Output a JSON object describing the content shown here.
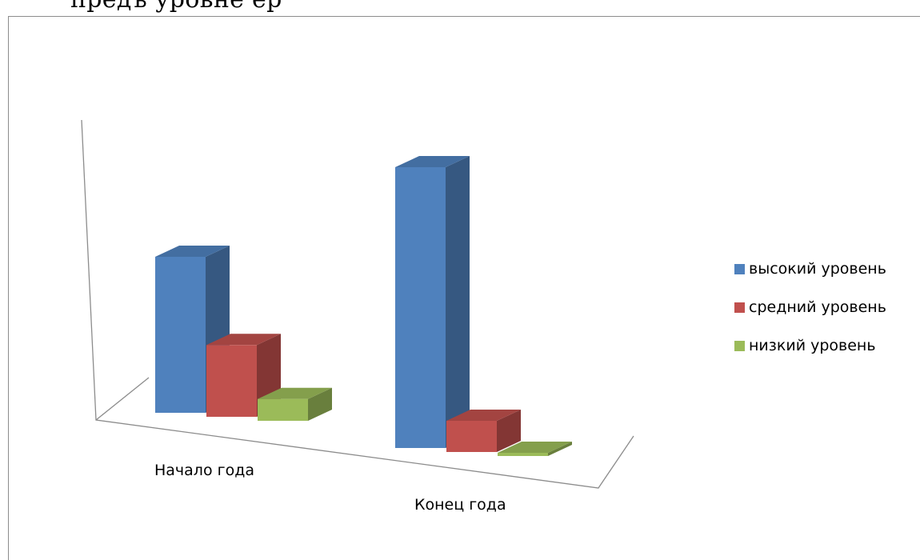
{
  "top_strip_text": "предъ уровне                                            ер",
  "chart_data": {
    "type": "bar",
    "style": "3d-clustered-column",
    "categories": [
      "Начало года",
      "Конец года"
    ],
    "series": [
      {
        "name": "высокий уровень",
        "values": [
          50,
          90
        ],
        "color": "#4F81BD"
      },
      {
        "name": "средний уровень",
        "values": [
          23,
          10
        ],
        "color": "#C0504D"
      },
      {
        "name": "низкий уровень",
        "values": [
          7,
          1
        ],
        "color": "#9BBB59"
      }
    ],
    "title": "",
    "xlabel": "",
    "ylabel": "",
    "ylim": [
      0,
      100
    ],
    "grid": false,
    "legend_position": "right"
  }
}
